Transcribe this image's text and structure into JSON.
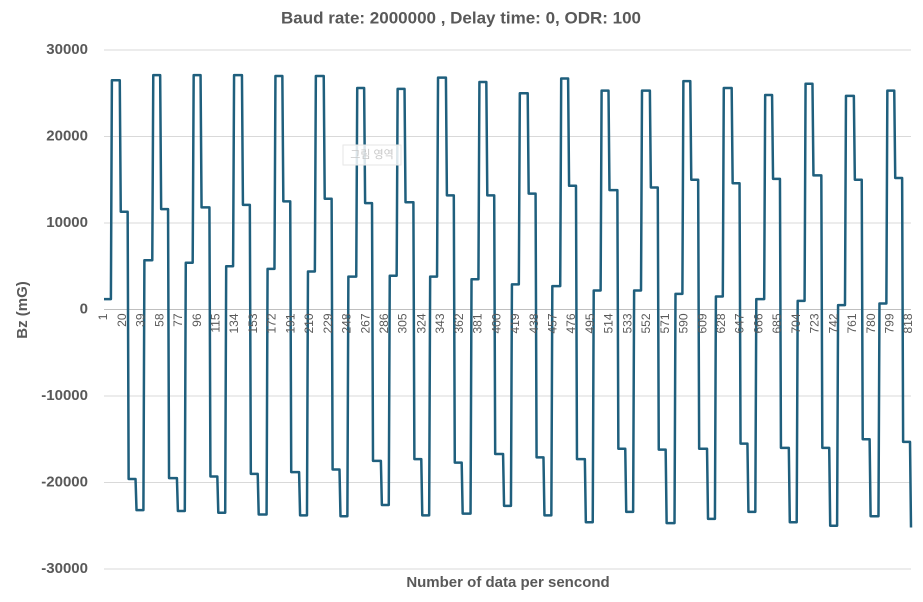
{
  "chart_data": {
    "type": "line",
    "title": "Baud rate: 2000000 , Delay time: 0, ODR: 100",
    "x_label": "Number of data per sencond",
    "y_label": "Bz (mG)",
    "tooltip": "그림 영역",
    "grid": true,
    "xlim": [
      1,
      820
    ],
    "xticks": [
      1,
      20,
      39,
      58,
      77,
      96,
      115,
      134,
      153,
      172,
      191,
      210,
      229,
      248,
      267,
      286,
      305,
      324,
      343,
      362,
      381,
      400,
      419,
      438,
      457,
      476,
      495,
      514,
      533,
      552,
      571,
      590,
      609,
      628,
      647,
      666,
      685,
      704,
      723,
      742,
      761,
      780,
      799,
      818
    ],
    "ylim": [
      -30000,
      30000
    ],
    "yticks": [
      -30000,
      -20000,
      -10000,
      0,
      10000,
      20000,
      30000
    ],
    "series": [
      {
        "color": "#1f5f7d",
        "x": [
          1,
          8,
          9,
          17,
          18,
          25,
          26,
          33,
          34,
          41,
          42,
          50,
          51,
          58,
          59,
          66,
          67,
          75,
          76,
          83,
          84,
          91,
          92,
          99,
          100,
          108,
          109,
          116,
          117,
          124,
          125,
          132,
          133,
          141,
          142,
          149,
          150,
          157,
          158,
          166,
          167,
          174,
          175,
          182,
          183,
          190,
          191,
          199,
          200,
          207,
          208,
          215,
          216,
          224,
          225,
          232,
          233,
          240,
          241,
          248,
          249,
          257,
          258,
          265,
          266,
          273,
          274,
          282,
          283,
          290,
          291,
          298,
          299,
          306,
          307,
          315,
          316,
          323,
          324,
          331,
          332,
          339,
          340,
          348,
          349,
          356,
          357,
          364,
          365,
          373,
          374,
          381,
          382,
          389,
          390,
          397,
          398,
          406,
          407,
          414,
          415,
          422,
          423,
          431,
          432,
          439,
          440,
          447,
          448,
          455,
          456,
          464,
          465,
          472,
          473,
          480,
          481,
          489,
          490,
          497,
          498,
          505,
          506,
          513,
          514,
          522,
          523,
          530,
          531,
          538,
          539,
          546,
          547,
          555,
          556,
          563,
          564,
          571,
          572,
          580,
          581,
          588,
          589,
          596,
          597,
          604,
          605,
          613,
          614,
          621,
          622,
          629,
          630,
          638,
          639,
          646,
          647,
          654,
          655,
          662,
          663,
          671,
          672,
          679,
          680,
          687,
          688,
          696,
          697,
          704,
          705,
          712,
          713,
          720,
          721,
          729,
          730,
          737,
          738,
          745,
          746,
          753,
          754,
          762,
          763,
          770,
          771,
          778,
          779,
          787,
          788,
          795,
          796,
          803,
          804,
          811,
          812,
          819,
          820
        ],
        "values": [
          1200,
          1200,
          26500,
          26500,
          11300,
          11300,
          -19600,
          -19600,
          -23200,
          -23200,
          5700,
          5700,
          27100,
          27100,
          11600,
          11600,
          -19500,
          -19500,
          -23300,
          -23300,
          5400,
          5400,
          27100,
          27100,
          11800,
          11800,
          -19300,
          -19300,
          -23500,
          -23500,
          5000,
          5000,
          27100,
          27100,
          12100,
          12100,
          -19000,
          -19000,
          -23700,
          -23700,
          4700,
          4700,
          27000,
          27000,
          12500,
          12500,
          -18800,
          -18800,
          -23800,
          -23800,
          4400,
          4400,
          27000,
          27000,
          12800,
          12800,
          -18500,
          -18500,
          -23900,
          -23900,
          3800,
          3800,
          25600,
          25600,
          12300,
          12300,
          -17500,
          -17500,
          -22600,
          -22600,
          3900,
          3900,
          25500,
          25500,
          12400,
          12400,
          -17300,
          -17300,
          -23800,
          -23800,
          3800,
          3800,
          26800,
          26800,
          13200,
          13200,
          -17700,
          -17700,
          -23600,
          -23600,
          3500,
          3500,
          26300,
          26300,
          13200,
          13200,
          -16700,
          -16700,
          -22700,
          -22700,
          2900,
          2900,
          25000,
          25000,
          13400,
          13400,
          -17100,
          -17100,
          -23800,
          -23800,
          2700,
          2700,
          26700,
          26700,
          14300,
          14300,
          -17300,
          -17300,
          -24600,
          -24600,
          2200,
          2200,
          25300,
          25300,
          13800,
          13800,
          -16100,
          -16100,
          -23400,
          -23400,
          2200,
          2200,
          25300,
          25300,
          14100,
          14100,
          -16200,
          -16200,
          -24700,
          -24700,
          1800,
          1800,
          26400,
          26400,
          15000,
          15000,
          -16100,
          -16100,
          -24200,
          -24200,
          1500,
          1500,
          25600,
          25600,
          14600,
          14600,
          -15500,
          -15500,
          -23400,
          -23400,
          1200,
          1200,
          24800,
          24800,
          15100,
          15100,
          -16000,
          -16000,
          -24600,
          -24600,
          1000,
          1000,
          26100,
          26100,
          15500,
          15500,
          -16000,
          -16000,
          -25000,
          -25000,
          500,
          500,
          24700,
          24700,
          15000,
          15000,
          -15000,
          -15000,
          -23900,
          -23900,
          700,
          700,
          25300,
          25300,
          15200,
          15200,
          -15300,
          -15300,
          -25200
        ]
      }
    ]
  }
}
